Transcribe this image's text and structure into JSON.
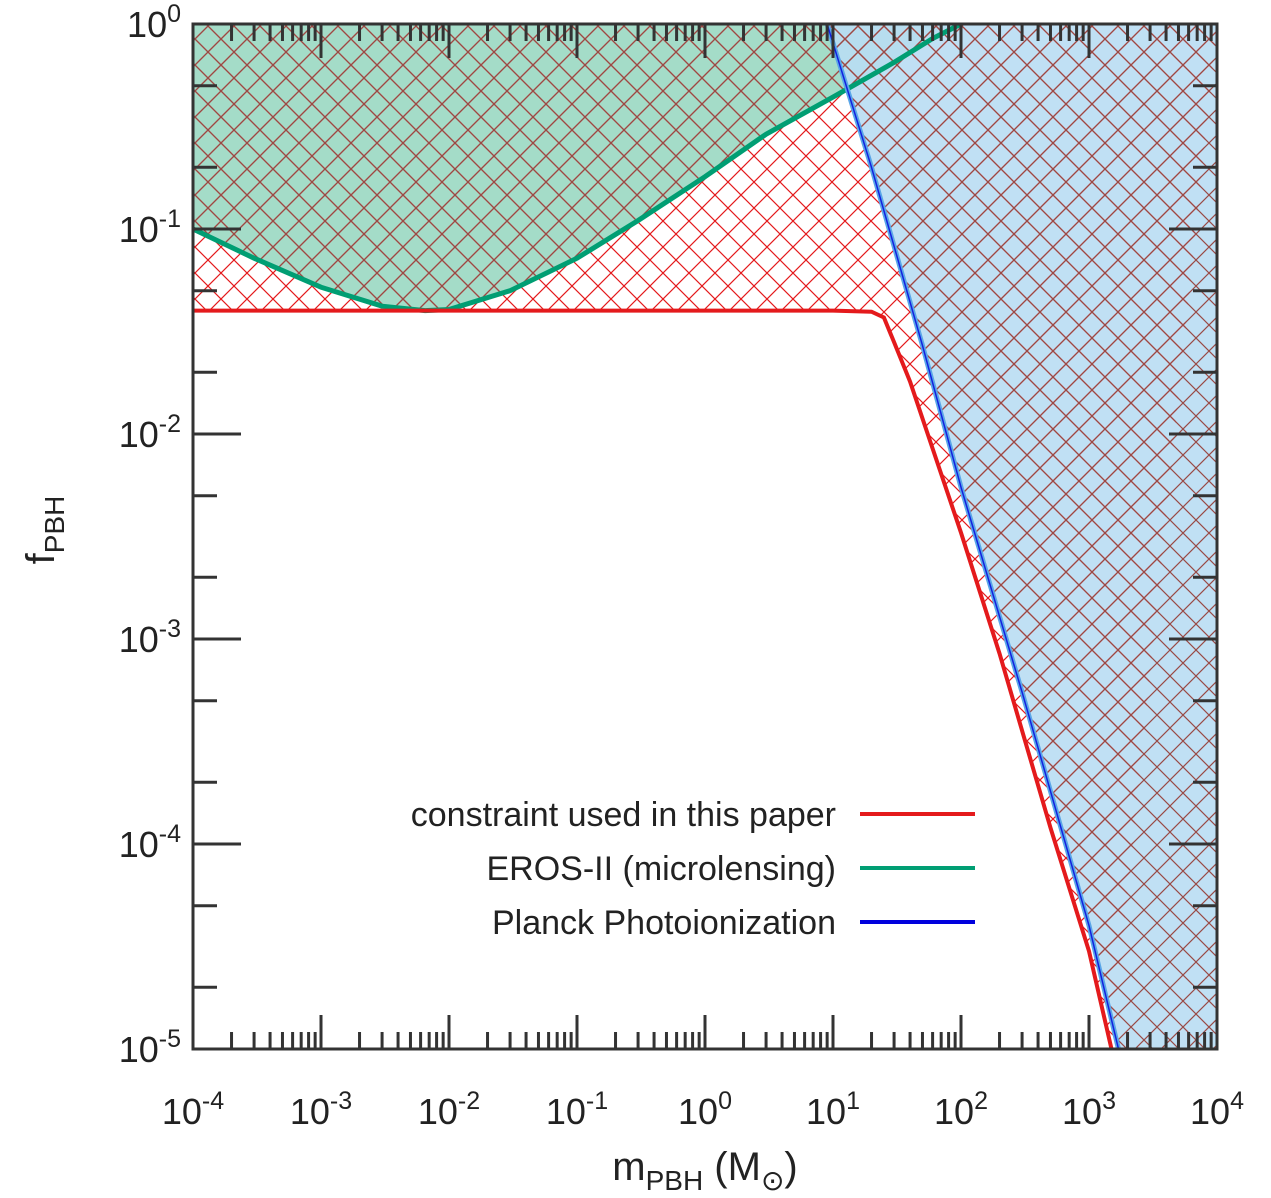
{
  "chart_data": {
    "type": "area",
    "title": "",
    "xlabel": {
      "base": "m",
      "sub": "PBH",
      "unit_open": " (M",
      "unit_sub": "⊙",
      "unit_close": ")"
    },
    "ylabel": {
      "base": "f",
      "sub": "PBH"
    },
    "xscale": "log",
    "yscale": "log",
    "xlim": [
      0.0001,
      10000
    ],
    "ylim": [
      1e-05,
      1
    ],
    "x_ticks": [
      {
        "base": "10",
        "exp": "-4"
      },
      {
        "base": "10",
        "exp": "-3"
      },
      {
        "base": "10",
        "exp": "-2"
      },
      {
        "base": "10",
        "exp": "-1"
      },
      {
        "base": "10",
        "exp": "0"
      },
      {
        "base": "10",
        "exp": "1"
      },
      {
        "base": "10",
        "exp": "2"
      },
      {
        "base": "10",
        "exp": "3"
      },
      {
        "base": "10",
        "exp": "4"
      }
    ],
    "y_ticks": [
      {
        "base": "10",
        "exp": "-5"
      },
      {
        "base": "10",
        "exp": "-4"
      },
      {
        "base": "10",
        "exp": "-3"
      },
      {
        "base": "10",
        "exp": "-2"
      },
      {
        "base": "10",
        "exp": "-1"
      },
      {
        "base": "10",
        "exp": "0"
      }
    ],
    "grid": false,
    "legend_position": "bottom-right",
    "series": [
      {
        "name": "constraint used in this paper",
        "color": "#e41a1c",
        "fill": "crosshatch",
        "hatch_color": "#e41a1c",
        "x": [
          0.0001,
          0.001,
          0.01,
          0.1,
          1,
          10,
          20,
          25,
          30,
          40,
          60,
          100,
          200,
          500,
          1000,
          1500
        ],
        "y": [
          0.04,
          0.04,
          0.04,
          0.04,
          0.04,
          0.04,
          0.0395,
          0.037,
          0.028,
          0.018,
          0.0085,
          0.0033,
          0.00085,
          0.00012,
          3e-05,
          1e-05
        ]
      },
      {
        "name": "EROS-II (microlensing)",
        "color": "#009e73",
        "fill": "#9fdac5",
        "x": [
          0.0001,
          0.0003,
          0.001,
          0.003,
          0.0065,
          0.01,
          0.03,
          0.1,
          0.3,
          1,
          3,
          10,
          30,
          60,
          100
        ],
        "y": [
          0.1,
          0.072,
          0.052,
          0.042,
          0.04,
          0.0405,
          0.05,
          0.072,
          0.11,
          0.18,
          0.29,
          0.44,
          0.65,
          0.85,
          1
        ]
      },
      {
        "name": "Planck Photoionization",
        "color": "#0000dd",
        "fill": "#b9ddf3",
        "x": [
          9,
          20,
          50,
          100,
          300,
          1000,
          1700
        ],
        "y": [
          1,
          0.2,
          0.027,
          0.0055,
          0.00055,
          4e-05,
          1e-05
        ]
      }
    ]
  }
}
